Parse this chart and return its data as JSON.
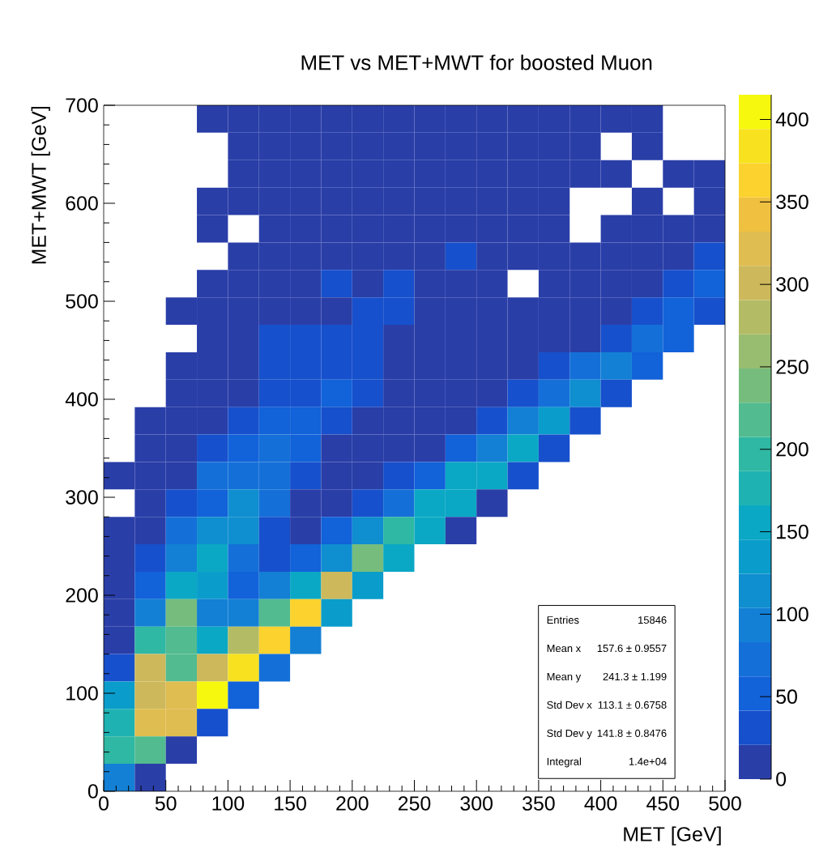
{
  "chart_data": {
    "type": "heatmap",
    "title": "MET vs MET+MWT for boosted Muon",
    "xlabel": "MET [GeV]",
    "ylabel": "MET+MWT [GeV]",
    "x": [
      12.5,
      37.5,
      62.5,
      87.5,
      112.5,
      137.5,
      162.5,
      187.5,
      212.5,
      237.5,
      262.5,
      287.5,
      312.5,
      337.5,
      362.5,
      387.5,
      412.5,
      437.5,
      462.5,
      487.5
    ],
    "xlim": [
      0,
      500
    ],
    "ylim": [
      0,
      700
    ],
    "xticks": [
      0,
      50,
      100,
      150,
      200,
      250,
      300,
      350,
      400,
      450,
      500
    ],
    "yticks": [
      0,
      100,
      200,
      300,
      400,
      500,
      600,
      700
    ],
    "clim": [
      0,
      415
    ],
    "cticks": [
      0,
      50,
      100,
      150,
      200,
      250,
      300,
      350,
      400
    ],
    "colors": [
      "#2a3ea8",
      "#1750cc",
      "#1262d9",
      "#1470d8",
      "#1380d5",
      "#0f8ed0",
      "#0a9dcb",
      "#0ba8c5",
      "#1eb2b3",
      "#2fb8a3",
      "#52bb8f",
      "#76bd7d",
      "#98bd70",
      "#b3bc65",
      "#cdb95b",
      "#e0bd50",
      "#f0c040",
      "#fbd22e",
      "#f8e21f",
      "#f6f80e"
    ],
    "cells": [
      [
        null,
        null,
        null,
        10,
        10,
        10,
        10,
        10,
        10,
        10,
        10,
        10,
        10,
        10,
        10,
        10,
        10,
        10,
        null,
        null
      ],
      [
        null,
        null,
        null,
        null,
        10,
        10,
        10,
        10,
        10,
        10,
        10,
        10,
        10,
        10,
        10,
        10,
        null,
        10,
        null,
        null
      ],
      [
        null,
        null,
        null,
        null,
        10,
        10,
        10,
        10,
        10,
        10,
        10,
        10,
        10,
        10,
        10,
        10,
        10,
        null,
        10,
        10
      ],
      [
        null,
        null,
        null,
        10,
        10,
        10,
        10,
        10,
        10,
        10,
        10,
        10,
        10,
        10,
        10,
        null,
        null,
        10,
        null,
        10
      ],
      [
        null,
        null,
        null,
        10,
        null,
        10,
        10,
        10,
        10,
        10,
        10,
        10,
        10,
        10,
        10,
        null,
        10,
        10,
        10,
        10
      ],
      [
        null,
        null,
        null,
        null,
        10,
        10,
        10,
        10,
        10,
        10,
        10,
        31,
        10,
        10,
        10,
        10,
        10,
        10,
        10,
        31
      ],
      [
        null,
        null,
        null,
        10,
        10,
        10,
        10,
        31,
        10,
        31,
        10,
        10,
        10,
        null,
        10,
        10,
        10,
        10,
        31,
        52
      ],
      [
        null,
        null,
        10,
        10,
        10,
        10,
        10,
        10,
        31,
        31,
        10,
        10,
        10,
        10,
        10,
        10,
        10,
        31,
        52,
        31
      ],
      [
        null,
        null,
        null,
        10,
        10,
        31,
        31,
        31,
        31,
        10,
        10,
        10,
        10,
        10,
        10,
        10,
        31,
        73,
        52,
        null
      ],
      [
        null,
        null,
        10,
        10,
        10,
        31,
        31,
        31,
        31,
        10,
        10,
        10,
        10,
        10,
        31,
        73,
        93,
        52,
        null,
        null
      ],
      [
        null,
        null,
        10,
        10,
        10,
        31,
        31,
        52,
        31,
        10,
        10,
        10,
        10,
        31,
        73,
        114,
        31,
        null,
        null,
        null
      ],
      [
        null,
        10,
        10,
        10,
        31,
        52,
        52,
        31,
        10,
        10,
        10,
        10,
        31,
        93,
        135,
        31,
        null,
        null,
        null,
        null
      ],
      [
        null,
        10,
        10,
        31,
        52,
        73,
        52,
        10,
        10,
        10,
        10,
        52,
        93,
        156,
        31,
        null,
        null,
        null,
        null,
        null
      ],
      [
        10,
        10,
        10,
        73,
        73,
        73,
        31,
        10,
        10,
        31,
        52,
        156,
        156,
        31,
        null,
        null,
        null,
        null,
        null,
        null
      ],
      [
        null,
        10,
        31,
        52,
        114,
        73,
        10,
        10,
        31,
        73,
        156,
        156,
        10,
        null,
        null,
        null,
        null,
        null,
        null,
        null
      ],
      [
        10,
        10,
        73,
        114,
        114,
        31,
        10,
        52,
        114,
        197,
        156,
        10,
        null,
        null,
        null,
        null,
        null,
        null,
        null,
        null
      ],
      [
        10,
        31,
        93,
        156,
        73,
        31,
        52,
        114,
        239,
        156,
        null,
        null,
        null,
        null,
        null,
        null,
        null,
        null,
        null,
        null
      ],
      [
        10,
        52,
        156,
        135,
        52,
        93,
        156,
        301,
        135,
        null,
        null,
        null,
        null,
        null,
        null,
        null,
        null,
        null,
        null,
        null
      ],
      [
        10,
        93,
        239,
        93,
        93,
        218,
        363,
        135,
        null,
        null,
        null,
        null,
        null,
        null,
        null,
        null,
        null,
        null,
        null,
        null
      ],
      [
        10,
        197,
        218,
        156,
        280,
        363,
        93,
        null,
        null,
        null,
        null,
        null,
        null,
        null,
        null,
        null,
        null,
        null,
        null,
        null
      ],
      [
        31,
        301,
        218,
        301,
        384,
        73,
        null,
        null,
        null,
        null,
        null,
        null,
        null,
        null,
        null,
        null,
        null,
        null,
        null,
        null
      ],
      [
        135,
        301,
        322,
        405,
        52,
        null,
        null,
        null,
        null,
        null,
        null,
        null,
        null,
        null,
        null,
        null,
        null,
        null,
        null,
        null
      ],
      [
        176,
        322,
        322,
        31,
        null,
        null,
        null,
        null,
        null,
        null,
        null,
        null,
        null,
        null,
        null,
        null,
        null,
        null,
        null,
        null
      ],
      [
        197,
        218,
        10,
        null,
        null,
        null,
        null,
        null,
        null,
        null,
        null,
        null,
        null,
        null,
        null,
        null,
        null,
        null,
        null,
        null
      ],
      [
        93,
        10,
        null,
        null,
        null,
        null,
        null,
        null,
        null,
        null,
        null,
        null,
        null,
        null,
        null,
        null,
        null,
        null,
        null,
        null
      ]
    ],
    "annotations": [
      "Entries",
      "15846",
      "Mean x",
      "157.6 ± 0.9557",
      "Mean y",
      "241.3 ±  1.199",
      "Std Dev x",
      "113.1 ± 0.6758",
      "Std Dev y",
      "141.8 ± 0.8476",
      "Integral",
      "1.4e+04"
    ]
  }
}
